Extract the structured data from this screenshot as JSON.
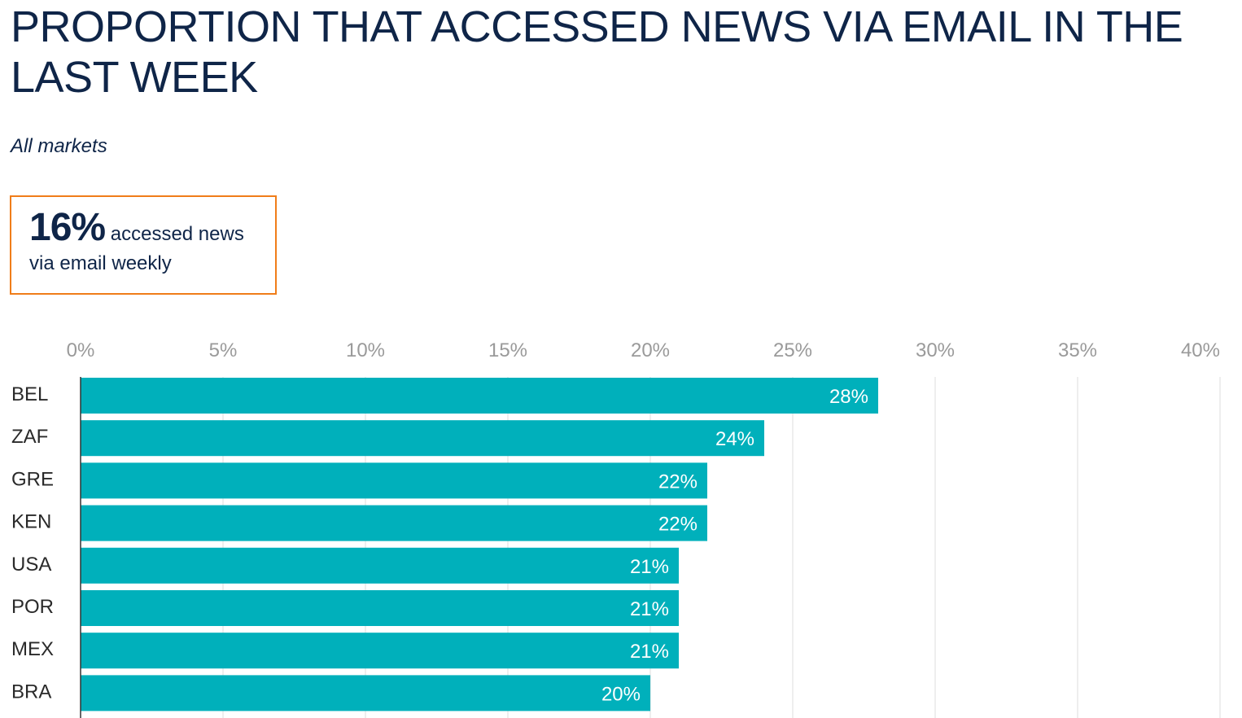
{
  "title": "PROPORTION THAT ACCESSED NEWS VIA EMAIL IN THE LAST WEEK",
  "subtitle": "All markets",
  "callout": {
    "value": "16%",
    "text_line1": " accessed news",
    "text_line2": "via email weekly"
  },
  "colors": {
    "bar": "#00b0bb",
    "title": "#0f2548",
    "callout_border": "#f07d19",
    "grid": "#dddddd",
    "tick": "#9a9a9a",
    "bar_label": "#ffffff",
    "category": "#2a2a2a"
  },
  "chart_data": {
    "type": "bar",
    "orientation": "horizontal",
    "title": "PROPORTION THAT ACCESSED NEWS VIA EMAIL IN THE LAST WEEK",
    "subtitle": "All markets",
    "categories": [
      "BEL",
      "ZAF",
      "GRE",
      "KEN",
      "USA",
      "POR",
      "MEX",
      "BRA"
    ],
    "values": [
      28,
      24,
      22,
      22,
      21,
      21,
      21,
      20
    ],
    "value_labels": [
      "28%",
      "24%",
      "22%",
      "22%",
      "21%",
      "21%",
      "21%",
      "20%"
    ],
    "x_ticks": [
      0,
      5,
      10,
      15,
      20,
      25,
      30,
      35,
      40
    ],
    "x_tick_labels": [
      "0%",
      "5%",
      "10%",
      "15%",
      "20%",
      "25%",
      "30%",
      "35%",
      "40%"
    ],
    "xlim": [
      0,
      40
    ],
    "xlabel": "",
    "ylabel": "",
    "grid": true,
    "axis_position": "top"
  }
}
